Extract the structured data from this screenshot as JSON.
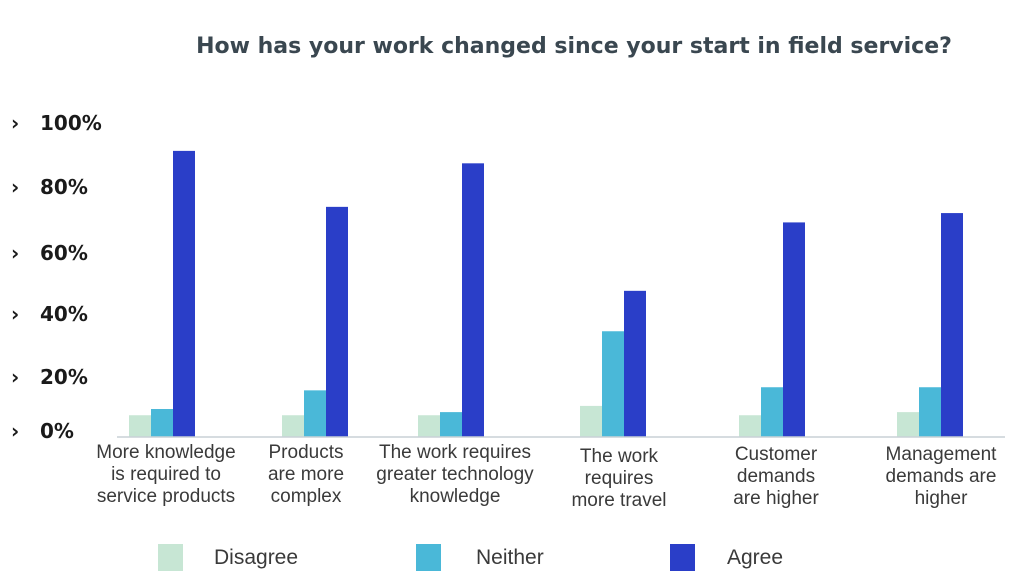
{
  "chart_data": {
    "type": "bar",
    "title": "How has your work changed since your start in field service?",
    "xlabel": "",
    "ylabel": "",
    "ylim": [
      0,
      100
    ],
    "yticks": [
      "0%",
      "20%",
      "40%",
      "60%",
      "80%",
      "100%"
    ],
    "tick_prefix_glyph": "›",
    "categories": [
      [
        "More knowledge",
        "is required to",
        "service products"
      ],
      [
        "Products",
        "are more",
        "complex"
      ],
      [
        "The work requires",
        "greater technology",
        "knowledge"
      ],
      [
        "The work",
        "requires",
        "more travel"
      ],
      [
        "Customer",
        "demands",
        "are higher"
      ],
      [
        "Management",
        "demands are",
        "higher"
      ]
    ],
    "series": [
      {
        "name": "Disagree",
        "color": "#c7e6d4",
        "values": [
          7,
          7,
          7,
          10,
          7,
          8
        ]
      },
      {
        "name": "Neither",
        "color": "#4ab8d8",
        "values": [
          9,
          15,
          8,
          34,
          16,
          16
        ]
      },
      {
        "name": "Agree",
        "color": "#2a3ec8",
        "values": [
          92,
          74,
          88,
          47,
          69,
          72
        ]
      }
    ],
    "grid": false,
    "legend_position": "bottom"
  }
}
